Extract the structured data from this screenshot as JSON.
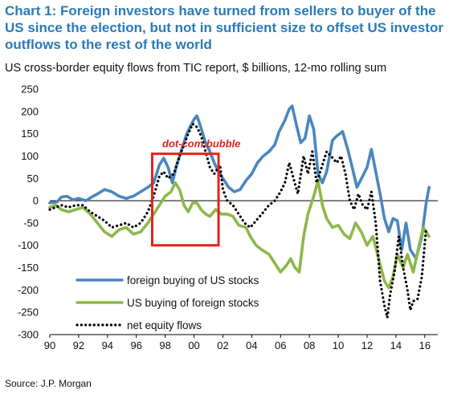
{
  "chart_data": {
    "type": "line",
    "title": "Chart 1: Foreign investors have turned from sellers to buyer of the US since the election, but not in sufficient size to offset US investor outflows to the rest of the world",
    "subtitle": "US cross-border equity flows from TIC report, $ billions, 12-mo rolling sum",
    "source": "Source: J.P. Morgan",
    "xlabel": "",
    "ylabel": "",
    "xlim": [
      1990,
      2016.9
    ],
    "ylim": [
      -300,
      250
    ],
    "x_ticks": [
      "90",
      "92",
      "94",
      "96",
      "98",
      "00",
      "02",
      "04",
      "06",
      "08",
      "10",
      "12",
      "14",
      "16"
    ],
    "y_ticks": [
      "250",
      "200",
      "150",
      "100",
      "50",
      "0",
      "-50",
      "-100",
      "-150",
      "-200",
      "-250",
      "-300"
    ],
    "grid": false,
    "legend_position": "bottom-left",
    "annotation": {
      "text": "dot-com bubble",
      "x_range": [
        1997.1,
        2001.7
      ],
      "y_range": [
        -100,
        105
      ]
    },
    "series": [
      {
        "name": "foreign buying of US stocks",
        "color": "#4a86c0",
        "style": "solid",
        "points": [
          [
            1990,
            -5
          ],
          [
            1990.5,
            -3
          ],
          [
            1990.8,
            8
          ],
          [
            1991.2,
            10
          ],
          [
            1991.6,
            2
          ],
          [
            1992,
            5
          ],
          [
            1992.5,
            0
          ],
          [
            1992.9,
            8
          ],
          [
            1993.3,
            15
          ],
          [
            1993.8,
            25
          ],
          [
            1994.3,
            20
          ],
          [
            1994.8,
            10
          ],
          [
            1995.3,
            5
          ],
          [
            1995.8,
            10
          ],
          [
            1996.3,
            20
          ],
          [
            1996.8,
            30
          ],
          [
            1997.2,
            40
          ],
          [
            1997.6,
            80
          ],
          [
            1997.9,
            95
          ],
          [
            1998.2,
            75
          ],
          [
            1998.5,
            40
          ],
          [
            1998.8,
            80
          ],
          [
            1999.2,
            120
          ],
          [
            1999.5,
            150
          ],
          [
            1999.8,
            170
          ],
          [
            2000.0,
            182
          ],
          [
            2000.2,
            190
          ],
          [
            2000.4,
            172
          ],
          [
            2000.8,
            130
          ],
          [
            2001.1,
            110
          ],
          [
            2001.4,
            85
          ],
          [
            2001.7,
            65
          ],
          [
            2002.0,
            50
          ],
          [
            2002.4,
            30
          ],
          [
            2002.8,
            20
          ],
          [
            2003.2,
            25
          ],
          [
            2003.6,
            45
          ],
          [
            2004.0,
            60
          ],
          [
            2004.4,
            85
          ],
          [
            2004.8,
            100
          ],
          [
            2005.2,
            110
          ],
          [
            2005.6,
            125
          ],
          [
            2005.9,
            155
          ],
          [
            2006.3,
            180
          ],
          [
            2006.6,
            205
          ],
          [
            2006.8,
            212
          ],
          [
            2007.1,
            170
          ],
          [
            2007.4,
            130
          ],
          [
            2007.7,
            140
          ],
          [
            2008.0,
            190
          ],
          [
            2008.3,
            160
          ],
          [
            2008.6,
            60
          ],
          [
            2008.9,
            40
          ],
          [
            2009.2,
            65
          ],
          [
            2009.6,
            135
          ],
          [
            2009.9,
            145
          ],
          [
            2010.3,
            155
          ],
          [
            2010.7,
            110
          ],
          [
            2011.0,
            70
          ],
          [
            2011.3,
            30
          ],
          [
            2011.7,
            55
          ],
          [
            2012.0,
            75
          ],
          [
            2012.3,
            115
          ],
          [
            2012.6,
            65
          ],
          [
            2012.9,
            15
          ],
          [
            2013.2,
            -40
          ],
          [
            2013.5,
            -70
          ],
          [
            2013.8,
            -40
          ],
          [
            2014.1,
            -45
          ],
          [
            2014.4,
            -110
          ],
          [
            2014.7,
            -50
          ],
          [
            2015.0,
            -110
          ],
          [
            2015.4,
            -130
          ],
          [
            2015.8,
            -80
          ],
          [
            2016.1,
            -5
          ],
          [
            2016.3,
            30
          ]
        ]
      },
      {
        "name": "US buying of foreign stocks",
        "color": "#8cb84b",
        "style": "solid",
        "points": [
          [
            1990,
            -15
          ],
          [
            1990.4,
            -10
          ],
          [
            1990.8,
            -20
          ],
          [
            1991.3,
            -25
          ],
          [
            1991.8,
            -20
          ],
          [
            1992.3,
            -15
          ],
          [
            1992.8,
            -30
          ],
          [
            1993.3,
            -50
          ],
          [
            1993.8,
            -70
          ],
          [
            1994.3,
            -80
          ],
          [
            1994.8,
            -65
          ],
          [
            1995.3,
            -60
          ],
          [
            1995.8,
            -75
          ],
          [
            1996.3,
            -70
          ],
          [
            1996.8,
            -50
          ],
          [
            1997.2,
            -30
          ],
          [
            1997.6,
            -10
          ],
          [
            1998.0,
            10
          ],
          [
            1998.4,
            20
          ],
          [
            1998.7,
            40
          ],
          [
            1999.0,
            25
          ],
          [
            1999.3,
            -10
          ],
          [
            1999.6,
            -25
          ],
          [
            1999.9,
            -5
          ],
          [
            2000.2,
            -5
          ],
          [
            2000.5,
            -20
          ],
          [
            2000.8,
            -30
          ],
          [
            2001.1,
            -35
          ],
          [
            2001.5,
            -20
          ],
          [
            2001.9,
            -30
          ],
          [
            2002.3,
            -30
          ],
          [
            2002.7,
            -35
          ],
          [
            2003.1,
            -55
          ],
          [
            2003.6,
            -60
          ],
          [
            2003.9,
            -80
          ],
          [
            2004.3,
            -100
          ],
          [
            2004.7,
            -110
          ],
          [
            2005.2,
            -120
          ],
          [
            2005.6,
            -140
          ],
          [
            2006.0,
            -160
          ],
          [
            2006.4,
            -145
          ],
          [
            2006.7,
            -130
          ],
          [
            2007.0,
            -150
          ],
          [
            2007.3,
            -160
          ],
          [
            2007.6,
            -80
          ],
          [
            2007.9,
            -30
          ],
          [
            2008.3,
            10
          ],
          [
            2008.6,
            45
          ],
          [
            2008.9,
            -10
          ],
          [
            2009.2,
            -40
          ],
          [
            2009.6,
            -60
          ],
          [
            2010.0,
            -55
          ],
          [
            2010.4,
            -75
          ],
          [
            2010.8,
            -85
          ],
          [
            2011.2,
            -50
          ],
          [
            2011.6,
            -70
          ],
          [
            2012.0,
            -100
          ],
          [
            2012.4,
            -80
          ],
          [
            2012.8,
            -130
          ],
          [
            2013.2,
            -180
          ],
          [
            2013.5,
            -195
          ],
          [
            2013.8,
            -170
          ],
          [
            2014.1,
            -120
          ],
          [
            2014.5,
            -150
          ],
          [
            2014.8,
            -120
          ],
          [
            2015.2,
            -160
          ],
          [
            2015.6,
            -100
          ],
          [
            2015.9,
            -60
          ],
          [
            2016.3,
            -80
          ]
        ]
      },
      {
        "name": "net equity flows",
        "color": "#000000",
        "style": "dotted",
        "points": [
          [
            1990,
            -20
          ],
          [
            1990.4,
            -15
          ],
          [
            1990.8,
            -10
          ],
          [
            1991.3,
            -15
          ],
          [
            1991.8,
            -10
          ],
          [
            1992.3,
            -10
          ],
          [
            1992.8,
            -25
          ],
          [
            1993.3,
            -35
          ],
          [
            1993.8,
            -45
          ],
          [
            1994.3,
            -60
          ],
          [
            1994.8,
            -55
          ],
          [
            1995.3,
            -50
          ],
          [
            1995.8,
            -60
          ],
          [
            1996.3,
            -50
          ],
          [
            1996.8,
            -25
          ],
          [
            1997.2,
            10
          ],
          [
            1997.6,
            55
          ],
          [
            1997.9,
            65
          ],
          [
            1998.2,
            50
          ],
          [
            1998.6,
            60
          ],
          [
            1999.0,
            100
          ],
          [
            1999.3,
            125
          ],
          [
            1999.6,
            150
          ],
          [
            1999.9,
            172
          ],
          [
            2000.2,
            165
          ],
          [
            2000.5,
            145
          ],
          [
            2000.8,
            110
          ],
          [
            2001.1,
            75
          ],
          [
            2001.4,
            60
          ],
          [
            2001.8,
            80
          ],
          [
            2002.0,
            25
          ],
          [
            2002.3,
            0
          ],
          [
            2002.7,
            -10
          ],
          [
            2003.1,
            -30
          ],
          [
            2003.5,
            -50
          ],
          [
            2003.9,
            -60
          ],
          [
            2004.3,
            -45
          ],
          [
            2004.7,
            -30
          ],
          [
            2005.2,
            -10
          ],
          [
            2005.6,
            0
          ],
          [
            2006.0,
            20
          ],
          [
            2006.3,
            40
          ],
          [
            2006.6,
            85
          ],
          [
            2006.9,
            50
          ],
          [
            2007.2,
            15
          ],
          [
            2007.6,
            100
          ],
          [
            2007.9,
            60
          ],
          [
            2008.2,
            110
          ],
          [
            2008.5,
            40
          ],
          [
            2008.9,
            80
          ],
          [
            2009.2,
            110
          ],
          [
            2009.5,
            100
          ],
          [
            2009.9,
            85
          ],
          [
            2010.2,
            100
          ],
          [
            2010.5,
            60
          ],
          [
            2010.8,
            0
          ],
          [
            2011.1,
            -20
          ],
          [
            2011.4,
            15
          ],
          [
            2011.7,
            -10
          ],
          [
            2012.0,
            -20
          ],
          [
            2012.3,
            20
          ],
          [
            2012.6,
            -50
          ],
          [
            2012.9,
            -180
          ],
          [
            2013.2,
            -235
          ],
          [
            2013.4,
            -262
          ],
          [
            2013.6,
            -210
          ],
          [
            2013.9,
            -160
          ],
          [
            2014.2,
            -80
          ],
          [
            2014.5,
            -150
          ],
          [
            2014.8,
            -200
          ],
          [
            2015.0,
            -245
          ],
          [
            2015.2,
            -225
          ],
          [
            2015.5,
            -220
          ],
          [
            2015.8,
            -170
          ],
          [
            2016.1,
            -60
          ]
        ]
      }
    ]
  }
}
